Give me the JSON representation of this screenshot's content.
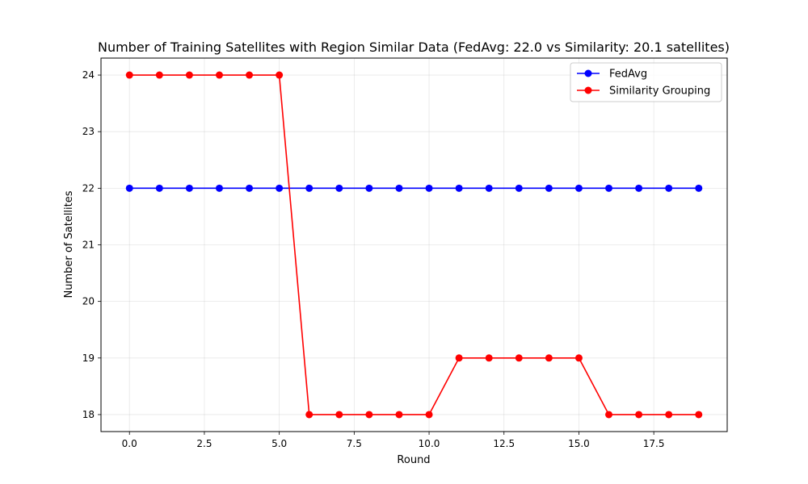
{
  "chart_data": {
    "type": "line",
    "title": "Number of Training Satellites with Region Similar Data (FedAvg: 22.0 vs Similarity: 20.1 satellites)",
    "xlabel": "Round",
    "ylabel": "Number of Satellites",
    "x": [
      0,
      1,
      2,
      3,
      4,
      5,
      6,
      7,
      8,
      9,
      10,
      11,
      12,
      13,
      14,
      15,
      16,
      17,
      18,
      19
    ],
    "series": [
      {
        "name": "FedAvg",
        "color": "#0000ff",
        "marker": "circle",
        "values": [
          22,
          22,
          22,
          22,
          22,
          22,
          22,
          22,
          22,
          22,
          22,
          22,
          22,
          22,
          22,
          22,
          22,
          22,
          22,
          22
        ]
      },
      {
        "name": "Similarity Grouping",
        "color": "#ff0000",
        "marker": "circle",
        "values": [
          24,
          24,
          24,
          24,
          24,
          24,
          18,
          18,
          18,
          18,
          18,
          19,
          19,
          19,
          19,
          19,
          18,
          18,
          18,
          18
        ]
      }
    ],
    "xlim": [
      -0.95,
      19.95
    ],
    "ylim": [
      17.7,
      24.3
    ],
    "xticks": [
      0.0,
      2.5,
      5.0,
      7.5,
      10.0,
      12.5,
      15.0,
      17.5
    ],
    "xtick_labels": [
      "0.0",
      "2.5",
      "5.0",
      "7.5",
      "10.0",
      "12.5",
      "15.0",
      "17.5"
    ],
    "yticks": [
      18,
      19,
      20,
      21,
      22,
      23,
      24
    ],
    "ytick_labels": [
      "18",
      "19",
      "20",
      "21",
      "22",
      "23",
      "24"
    ],
    "grid": true,
    "legend_position": "top-right"
  }
}
